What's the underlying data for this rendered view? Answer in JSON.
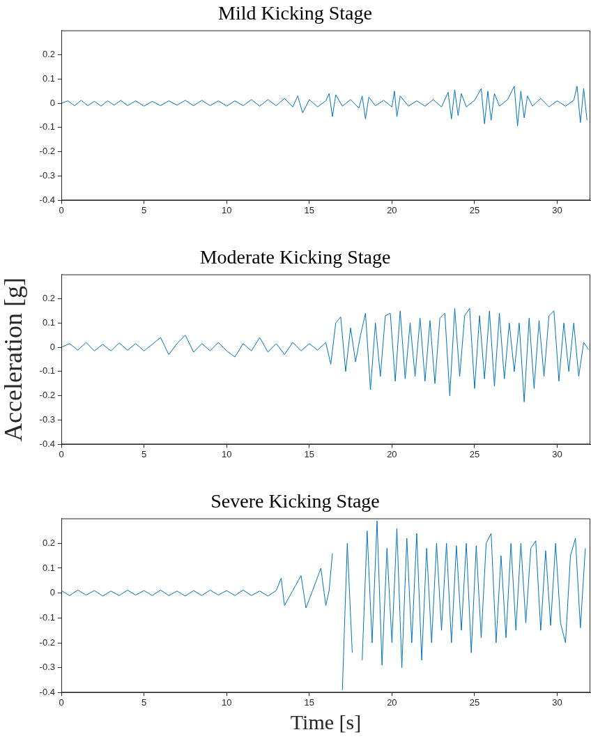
{
  "chart_data": [
    {
      "type": "line",
      "title": "Mild Kicking Stage",
      "xlim": [
        0,
        32
      ],
      "xticks": [
        0,
        5,
        10,
        15,
        20,
        25,
        30
      ],
      "ylim": [
        -0.4,
        0.3
      ],
      "yticks": [
        -0.4,
        -0.3,
        -0.2,
        -0.1,
        0,
        0.1,
        0.2
      ],
      "grid": false,
      "legend": false,
      "marker": "none",
      "line_style": "solid",
      "series": [
        {
          "color": "#0072bd",
          "x": [
            0,
            0.4,
            0.8,
            1.2,
            1.6,
            2.0,
            2.4,
            2.8,
            3.2,
            3.6,
            4.0,
            4.5,
            5,
            5.5,
            6,
            6.5,
            7,
            7.5,
            8,
            8.5,
            9,
            9.5,
            10,
            10.5,
            11,
            11.5,
            12,
            12.5,
            13,
            13.5,
            14,
            14.3,
            14.6,
            15,
            15.5,
            16,
            16.2,
            16.4,
            16.6,
            17,
            17.5,
            18,
            18.2,
            18.4,
            18.6,
            19,
            19.5,
            20,
            20.15,
            20.3,
            20.5,
            21,
            21.5,
            22,
            22.5,
            23,
            23.4,
            23.6,
            23.8,
            24,
            24.2,
            24.5,
            25,
            25.4,
            25.6,
            25.8,
            26,
            26.2,
            26.5,
            27,
            27.4,
            27.6,
            27.8,
            28,
            28.2,
            28.5,
            29,
            29.5,
            30,
            30.5,
            31,
            31.2,
            31.4,
            31.6,
            31.8
          ],
          "values": [
            0,
            0.01,
            -0.01,
            0.012,
            -0.01,
            0.008,
            -0.012,
            0.01,
            -0.008,
            0.012,
            -0.01,
            0.01,
            -0.012,
            0.008,
            -0.01,
            0.01,
            -0.008,
            0.012,
            -0.01,
            0.012,
            -0.01,
            0.01,
            -0.012,
            0.01,
            -0.01,
            0.015,
            -0.012,
            0.015,
            -0.01,
            0.02,
            -0.015,
            0.03,
            -0.04,
            0.015,
            -0.015,
            0.01,
            0.04,
            -0.055,
            0.035,
            -0.012,
            0.015,
            -0.02,
            0.03,
            -0.065,
            0.025,
            -0.01,
            0.012,
            -0.015,
            0.05,
            -0.055,
            0.03,
            -0.012,
            0.01,
            -0.012,
            0.015,
            -0.015,
            0.045,
            -0.065,
            0.055,
            -0.05,
            0.04,
            -0.015,
            0.012,
            0.06,
            -0.085,
            0.05,
            -0.07,
            0.04,
            -0.012,
            0.015,
            0.07,
            -0.093,
            0.05,
            -0.06,
            0.03,
            -0.012,
            0.02,
            -0.015,
            0.01,
            -0.012,
            0.012,
            0.07,
            -0.08,
            0.06,
            -0.07
          ]
        }
      ]
    },
    {
      "type": "line",
      "title": "Moderate Kicking Stage",
      "ylabel": "Acceleration [g]",
      "xlim": [
        0,
        32
      ],
      "xticks": [
        0,
        5,
        10,
        15,
        20,
        25,
        30
      ],
      "ylim": [
        -0.4,
        0.3
      ],
      "yticks": [
        -0.4,
        -0.3,
        -0.2,
        -0.1,
        0,
        0.1,
        0.2
      ],
      "grid": false,
      "legend": false,
      "marker": "none",
      "line_style": "solid",
      "series": [
        {
          "color": "#0072bd",
          "x": [
            0,
            0.5,
            1,
            1.5,
            2,
            2.5,
            3,
            3.5,
            4,
            4.5,
            5,
            5.5,
            6,
            6.5,
            7,
            7.5,
            8,
            8.5,
            9,
            9.5,
            10,
            10.5,
            11,
            11.5,
            12,
            12.5,
            13,
            13.5,
            14,
            14.5,
            15,
            15.5,
            16.0,
            16.3,
            16.6,
            16.9,
            17.2,
            17.5,
            17.8,
            18.1,
            18.4,
            18.7,
            19.0,
            19.3,
            19.6,
            19.9,
            20.2,
            20.5,
            20.8,
            21.1,
            21.4,
            21.7,
            22.0,
            22.3,
            22.6,
            22.9,
            23.2,
            23.5,
            23.8,
            24.1,
            24.4,
            24.7,
            25.0,
            25.3,
            25.6,
            25.9,
            26.2,
            26.5,
            26.8,
            27.1,
            27.4,
            27.7,
            28.0,
            28.3,
            28.6,
            28.9,
            29.2,
            29.5,
            29.8,
            30.1,
            30.4,
            30.7,
            31.0,
            31.3,
            31.6,
            31.9
          ],
          "values": [
            0,
            0.015,
            -0.012,
            0.02,
            -0.015,
            0.012,
            -0.015,
            0.018,
            -0.012,
            0.015,
            -0.015,
            0.012,
            0.04,
            -0.03,
            0.015,
            0.05,
            -0.02,
            0.015,
            -0.015,
            0.02,
            -0.015,
            -0.04,
            0.015,
            -0.015,
            0.04,
            -0.02,
            0.015,
            -0.03,
            0.02,
            -0.015,
            0.015,
            -0.012,
            0.02,
            -0.07,
            0.1,
            0.125,
            -0.1,
            0.08,
            -0.06,
            0.05,
            0.14,
            -0.175,
            0.1,
            -0.12,
            0.13,
            0.14,
            -0.14,
            0.15,
            -0.13,
            0.1,
            -0.12,
            0.12,
            -0.14,
            0.11,
            -0.15,
            0.12,
            0.14,
            -0.2,
            0.16,
            -0.12,
            0.13,
            0.16,
            -0.17,
            0.13,
            -0.13,
            0.15,
            -0.16,
            0.14,
            -0.13,
            0.1,
            -0.1,
            0.1,
            -0.225,
            0.12,
            -0.17,
            0.11,
            -0.12,
            0.13,
            0.15,
            -0.14,
            0.1,
            -0.1,
            0.1,
            -0.12,
            0.02,
            -0.01
          ]
        }
      ]
    },
    {
      "type": "line",
      "title": "Severe Kicking Stage",
      "xlabel": "Time [s]",
      "xlim": [
        0,
        32
      ],
      "xticks": [
        0,
        5,
        10,
        15,
        20,
        25,
        30
      ],
      "ylim": [
        -0.4,
        0.3
      ],
      "yticks": [
        -0.4,
        -0.3,
        -0.2,
        -0.1,
        0,
        0.1,
        0.2
      ],
      "grid": false,
      "legend": false,
      "marker": "none",
      "line_style": "solid",
      "series": [
        {
          "color": "#0072bd",
          "x": [
            0,
            0.5,
            1,
            1.5,
            2,
            2.5,
            3,
            3.5,
            4,
            4.5,
            5,
            5.5,
            6,
            6.5,
            7,
            7.5,
            8,
            8.5,
            9,
            9.5,
            10,
            10.5,
            11,
            11.5,
            12,
            12.5,
            13,
            13.3,
            13.5,
            14,
            14.5,
            14.8,
            15.2,
            15.7,
            16,
            16.2,
            16.4,
            16.7,
            17.0,
            17.3,
            17.6,
            17.9,
            18.2,
            18.5,
            18.8,
            19.1,
            19.4,
            19.7,
            20.0,
            20.3,
            20.6,
            20.9,
            21.2,
            21.5,
            21.8,
            22.1,
            22.4,
            22.7,
            23.0,
            23.3,
            23.6,
            23.9,
            24.2,
            24.5,
            24.8,
            25.1,
            25.4,
            25.7,
            26.0,
            26.3,
            26.6,
            26.9,
            27.2,
            27.5,
            27.8,
            28.1,
            28.4,
            28.7,
            29.0,
            29.3,
            29.6,
            29.9,
            30.2,
            30.5,
            30.8,
            31.1,
            31.4,
            31.7
          ],
          "values": [
            0.01,
            -0.01,
            0.012,
            -0.008,
            0.01,
            -0.012,
            0.008,
            -0.01,
            0.012,
            -0.008,
            0.01,
            -0.01,
            0.012,
            -0.01,
            0.008,
            -0.012,
            0.01,
            -0.01,
            0.012,
            -0.008,
            0.01,
            -0.01,
            0.012,
            -0.01,
            0.008,
            -0.012,
            0.01,
            0.06,
            -0.05,
            0.01,
            0.07,
            -0.06,
            0.01,
            0.1,
            -0.05,
            0.01,
            0.16,
            null,
            -0.39,
            0.2,
            -0.24,
            null,
            -0.27,
            0.25,
            -0.2,
            0.29,
            -0.29,
            0.18,
            -0.2,
            0.26,
            -0.3,
            0.22,
            -0.2,
            0.24,
            -0.27,
            0.18,
            -0.2,
            0.2,
            -0.15,
            0.2,
            -0.2,
            0.19,
            -0.15,
            0.2,
            -0.24,
            0.19,
            -0.18,
            0.2,
            0.24,
            -0.2,
            0.15,
            -0.18,
            0.2,
            -0.15,
            0.2,
            -0.12,
            0.18,
            0.21,
            -0.15,
            0.17,
            -0.13,
            0.2,
            -0.12,
            -0.2,
            0.15,
            0.22,
            -0.14,
            0.18
          ]
        }
      ]
    }
  ]
}
